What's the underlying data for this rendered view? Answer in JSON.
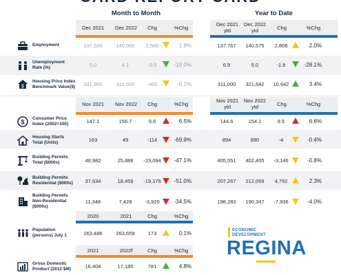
{
  "title": "CARD REPORT CARD",
  "sections": {
    "month": "Month to Month",
    "ytd": "Year to Date"
  },
  "hdr1": {
    "left": [
      "Dec 2021",
      "Dec 2022",
      "Chg",
      "%Chg"
    ],
    "right": [
      "Dec 2021 ytd",
      "Dec 2022 ytd",
      "Chg",
      "%Chg"
    ]
  },
  "hdr2": {
    "left": [
      "Nov 2021",
      "Nov 2022",
      "Chg",
      "%Chg"
    ],
    "right": [
      "Nov 2021 ytd",
      "Nov 2022 ytd",
      "Chg",
      "%Chg"
    ]
  },
  "hdr3": [
    "2020",
    "2021",
    "Chg",
    "%Chg"
  ],
  "hdr4": [
    "2021",
    "2022f",
    "Chg",
    "%Chg"
  ],
  "rows": [
    {
      "label": "Employment",
      "m": [
        "137,500",
        "140,000",
        "2,500",
        "1.8%"
      ],
      "y": [
        "137,767",
        "140,575",
        "2,808",
        "2.0%"
      ]
    },
    {
      "label": "Unemployment Rate (%)",
      "m": [
        "5.0",
        "4.1",
        "-0.9",
        "-18.0%"
      ],
      "y": [
        "6.9",
        "5.0",
        "-1.9",
        "-28.1%"
      ]
    },
    {
      "label": "Housing Price Index Benchmark Value($)",
      "m": [
        "311,900",
        "311,500",
        "-400",
        "-0.1%"
      ],
      "y": [
        "311,000",
        "321,642",
        "10,642",
        "3.4%"
      ]
    },
    {
      "label": "Consumer Price Index (2002=100)",
      "m": [
        "147.1",
        "156.7",
        "9.6",
        "6.5%"
      ],
      "y": [
        "144.6",
        "154.1",
        "9.5",
        "6.6%"
      ]
    },
    {
      "label": "Housing Starts Total (Units)",
      "m": [
        "163",
        "49",
        "-114",
        "-69.9%"
      ],
      "y": [
        "894",
        "890",
        "-4",
        "-0.4%"
      ]
    },
    {
      "label": "Building Permits Total ($000s)",
      "m": [
        "48,982",
        "25,888",
        "-23,094",
        "-47.1%"
      ],
      "y": [
        "405,551",
        "402,405",
        "-3,146",
        "-0.8%"
      ]
    },
    {
      "label": "Building Permits Residential ($000s)",
      "m": [
        "37,634",
        "18,459",
        "-19,175",
        "-51.0%"
      ],
      "y": [
        "207,267",
        "212,059",
        "4,792",
        "2.3%"
      ]
    },
    {
      "label": "Building Permits Non-Residential ($000s)",
      "m": [
        "11,348",
        "7,428",
        "-3,920",
        "-34.5%"
      ],
      "y": [
        "198,283",
        "190,347",
        "-7,936",
        "-4.0%"
      ]
    }
  ],
  "population": {
    "label": "Population (persons) July 1",
    "v": [
      "263,486",
      "263,659",
      "173",
      "0.1%"
    ]
  },
  "gdp": {
    "label": "Gross Domestic Product (2012 $M)",
    "v": [
      "16,404",
      "17,185",
      "781",
      "4.8%"
    ]
  },
  "logo": {
    "line1": "ECONOMIC",
    "line2": "DEVELOPMENT",
    "big": "REGINA"
  },
  "colors": {
    "orange": "#f4892a",
    "blue": "#1f6fb5",
    "red": "#d62b2b",
    "yellow": "#f5c518",
    "green": "#4caf3f"
  },
  "icons": [
    "employment-people-icon",
    "unemployment-people-icon",
    "house-dollar-icon",
    "dollar-coin-icon",
    "house-starts-icon",
    "crane-icon",
    "residential-trees-icon",
    "office-building-icon",
    "population-icon",
    "gdp-bars-icon"
  ]
}
